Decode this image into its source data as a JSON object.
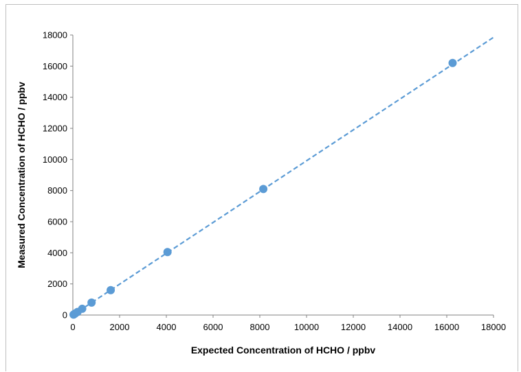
{
  "chart_data": {
    "type": "scatter",
    "title": "",
    "xlabel": "Expected Concentration of HCHO / ppbv",
    "ylabel": "Measured Concentration of HCHO / ppbv",
    "xlim": [
      0,
      18000
    ],
    "ylim": [
      0,
      18000
    ],
    "x_ticks": [
      "0",
      "2000",
      "4000",
      "6000",
      "8000",
      "10000",
      "12000",
      "14000",
      "16000",
      "18000"
    ],
    "y_ticks": [
      "0",
      "2000",
      "4000",
      "6000",
      "8000",
      "10000",
      "12000",
      "14000",
      "16000",
      "18000"
    ],
    "grid": false,
    "legend": "none",
    "series": [
      {
        "marker_color": "#5b9bd5",
        "points": [
          {
            "x": 30,
            "y": 30
          },
          {
            "x": 60,
            "y": 60
          },
          {
            "x": 100,
            "y": 100
          },
          {
            "x": 200,
            "y": 200
          },
          {
            "x": 400,
            "y": 400
          },
          {
            "x": 800,
            "y": 800
          },
          {
            "x": 1620,
            "y": 1600
          },
          {
            "x": 4050,
            "y": 4050
          },
          {
            "x": 8150,
            "y": 8100
          },
          {
            "x": 16250,
            "y": 16200
          }
        ]
      }
    ],
    "trendline": {
      "style": "dashed",
      "color": "#5b9bd5",
      "from": {
        "x": 0,
        "y": 0
      },
      "to": {
        "x": 18000,
        "y": 17850
      }
    }
  }
}
